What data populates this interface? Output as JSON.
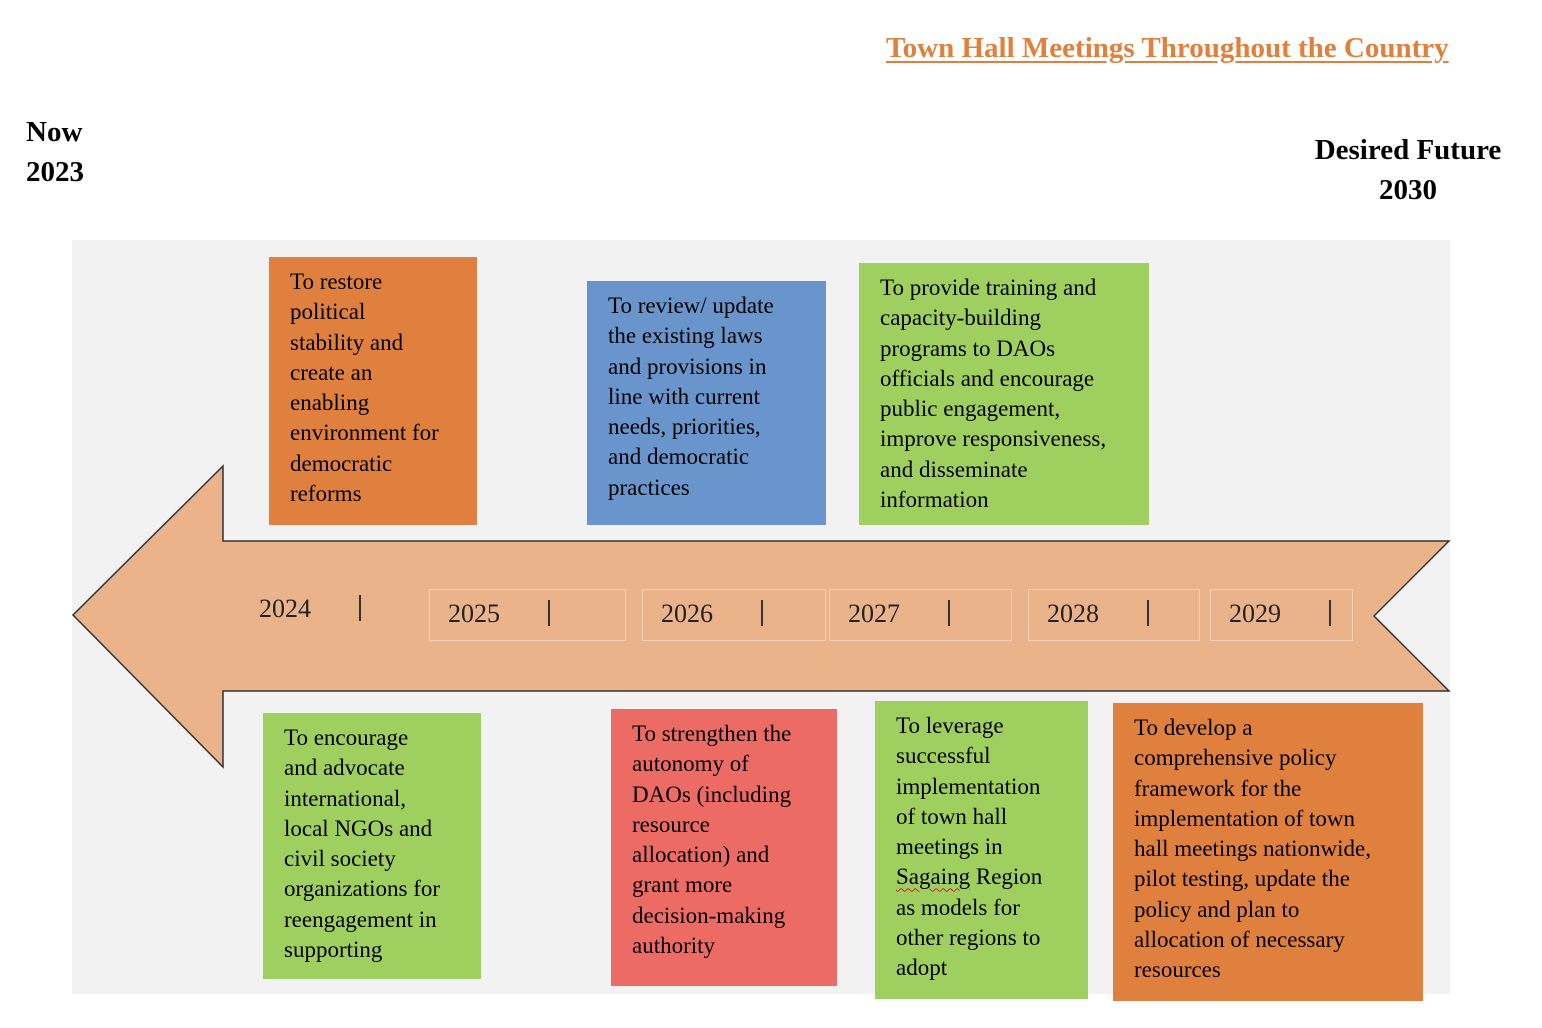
{
  "title": "Town Hall Meetings Throughout the Country",
  "start": {
    "label": "Now",
    "year": "2023"
  },
  "end": {
    "label": "Desired Future",
    "year": "2030"
  },
  "colors": {
    "title": "#e0803c",
    "arrow_fill": "#eab38a",
    "arrow_stroke": "#333333",
    "panel": "#f2f2f2",
    "orange": "#e0803f",
    "blue": "#6995cc",
    "green": "#9fcf5f",
    "red": "#ec6b65"
  },
  "years": [
    "2024",
    "2025",
    "2026",
    "2027",
    "2028",
    "2029"
  ],
  "tick_mark": "|",
  "goals_top": [
    {
      "year": "2024",
      "color": "orange",
      "lines": [
        "To restore",
        "political",
        "stability and",
        "create an",
        "enabling",
        "environment for",
        "democratic",
        "reforms"
      ]
    },
    {
      "year": "2026",
      "color": "blue",
      "lines": [
        "To review/ update",
        "the existing laws",
        "and provisions in",
        "line with current",
        "needs, priorities,",
        "and democratic",
        "practices"
      ]
    },
    {
      "year": "2027",
      "color": "green",
      "lines": [
        "To provide training and",
        "capacity-building",
        "programs to DAOs",
        "officials and encourage",
        "public engagement,",
        "improve responsiveness,",
        "and disseminate",
        "information"
      ]
    }
  ],
  "goals_bottom": [
    {
      "year": "2024",
      "color": "green",
      "lines": [
        "To encourage",
        "and advocate",
        "international,",
        "local NGOs and",
        "civil society",
        "organizations for",
        "reengagement in",
        "supporting"
      ]
    },
    {
      "year": "2026",
      "color": "red",
      "lines": [
        "To strengthen the",
        "autonomy of",
        "DAOs (including",
        "resource",
        "allocation) and",
        "grant more",
        "decision-making",
        "authority"
      ]
    },
    {
      "year": "2027",
      "color": "green",
      "lines": [
        "To leverage",
        "successful",
        "implementation",
        "of town hall",
        "meetings in",
        "Sagaing Region",
        "as models for",
        "other regions to",
        "adopt"
      ]
    },
    {
      "year": "2029",
      "color": "orange",
      "lines": [
        "To develop a",
        "comprehensive policy",
        "framework for the",
        "implementation of town",
        "hall meetings nationwide,",
        "pilot testing, update the",
        "policy and plan to",
        "allocation of necessary",
        "resources"
      ]
    }
  ]
}
